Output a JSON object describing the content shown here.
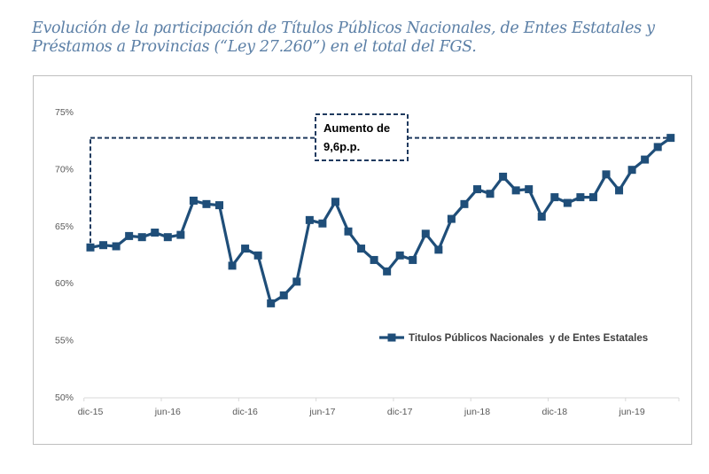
{
  "title": {
    "line1": "Evolución de la participación de Títulos Públicos Nacionales, de Entes Estatales y",
    "line2": "Préstamos a Provincias (“Ley 27.260”) en el total del FGS."
  },
  "colors": {
    "title": "#5b7fa6",
    "series": "#1f4e79",
    "annotation": "#1f3a5f",
    "axis_text": "#595959"
  },
  "chart_data": {
    "type": "line",
    "title": "Evolución de la participación de Títulos Públicos Nacionales, de Entes Estatales y Préstamos a Provincias (“Ley 27.260”) en el total del FGS.",
    "xlabel": "",
    "ylabel": "",
    "ylim": [
      0.5,
      0.75
    ],
    "y_ticks": [
      0.5,
      0.55,
      0.6,
      0.65,
      0.7,
      0.75
    ],
    "y_tick_labels": [
      "50%",
      "55%",
      "60%",
      "65%",
      "70%",
      "75%"
    ],
    "x_tick_labels": [
      "dic-15",
      "jun-16",
      "dic-16",
      "jun-17",
      "dic-17",
      "jun-18",
      "dic-18",
      "jun-19"
    ],
    "x_tick_indices": [
      0,
      6,
      12,
      18,
      24,
      30,
      36,
      42
    ],
    "x_start": "dic-15",
    "x_end": "sep-19",
    "grid": false,
    "legend_position": "center-right",
    "series": [
      {
        "name": "Titulos Públicos Nacionales  y de Entes Estatales",
        "marker": "square",
        "values": [
          0.631,
          0.633,
          0.632,
          0.641,
          0.64,
          0.644,
          0.64,
          0.642,
          0.672,
          0.669,
          0.668,
          0.615,
          0.63,
          0.624,
          0.582,
          0.589,
          0.601,
          0.655,
          0.652,
          0.671,
          0.645,
          0.63,
          0.62,
          0.61,
          0.624,
          0.62,
          0.643,
          0.629,
          0.656,
          0.669,
          0.682,
          0.678,
          0.693,
          0.681,
          0.682,
          0.658,
          0.675,
          0.67,
          0.675,
          0.675,
          0.695,
          0.681,
          0.699,
          0.708,
          0.719,
          0.727
        ]
      }
    ],
    "annotations": [
      {
        "text_line1": "Aumento de",
        "text_line2": "9,6p.p.",
        "style": "dashed-box",
        "from_index": 0,
        "to_index": 45,
        "bracket_level": 0.727
      }
    ]
  }
}
